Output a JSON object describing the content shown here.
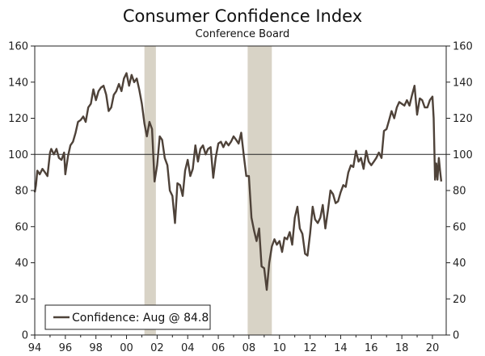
{
  "chart_data": {
    "type": "line",
    "title": "Consumer Confidence Index",
    "subtitle": "Conference Board",
    "xlabel": "",
    "ylabel": "",
    "xlim": [
      1994.0,
      2020.9
    ],
    "ylim": [
      0,
      160
    ],
    "y_ticks": [
      0,
      20,
      40,
      60,
      80,
      100,
      120,
      140,
      160
    ],
    "y_tick_labels": [
      "0",
      "20",
      "40",
      "60",
      "80",
      "100",
      "120",
      "140",
      "160"
    ],
    "x_ticks": [
      1994,
      1996,
      1998,
      2000,
      2002,
      2004,
      2006,
      2008,
      2010,
      2012,
      2014,
      2016,
      2018,
      2020
    ],
    "x_tick_labels": [
      "94",
      "96",
      "98",
      "00",
      "02",
      "04",
      "06",
      "08",
      "10",
      "12",
      "14",
      "16",
      "18",
      "20"
    ],
    "reference_line": 100,
    "grid": false,
    "recessions": [
      [
        2001.17,
        2001.92
      ],
      [
        2007.92,
        2009.5
      ]
    ],
    "colors": {
      "line": "#4e4239",
      "recession": "#d8d3c6",
      "axis": "#222222"
    },
    "legend": {
      "placement": "bottom-left",
      "label": "Confidence: Aug @ 84.8"
    },
    "series": [
      {
        "name": "Confidence: Aug @ 84.8",
        "x": [
          1994.0,
          1994.08,
          1994.17,
          1994.33,
          1994.5,
          1994.67,
          1994.83,
          1995.0,
          1995.08,
          1995.25,
          1995.42,
          1995.58,
          1995.75,
          1995.92,
          1996.0,
          1996.17,
          1996.33,
          1996.5,
          1996.67,
          1996.83,
          1997.0,
          1997.17,
          1997.33,
          1997.5,
          1997.67,
          1997.83,
          1998.0,
          1998.17,
          1998.33,
          1998.5,
          1998.67,
          1998.83,
          1999.0,
          1999.17,
          1999.33,
          1999.5,
          1999.67,
          1999.83,
          2000.0,
          2000.17,
          2000.33,
          2000.5,
          2000.67,
          2000.83,
          2001.0,
          2001.17,
          2001.33,
          2001.5,
          2001.67,
          2001.83,
          2002.0,
          2002.17,
          2002.33,
          2002.5,
          2002.67,
          2002.83,
          2003.0,
          2003.17,
          2003.33,
          2003.5,
          2003.67,
          2003.83,
          2004.0,
          2004.17,
          2004.33,
          2004.5,
          2004.67,
          2004.83,
          2005.0,
          2005.17,
          2005.33,
          2005.5,
          2005.67,
          2005.83,
          2006.0,
          2006.17,
          2006.33,
          2006.5,
          2006.67,
          2006.83,
          2007.0,
          2007.17,
          2007.33,
          2007.5,
          2007.67,
          2007.83,
          2008.0,
          2008.17,
          2008.33,
          2008.5,
          2008.67,
          2008.83,
          2009.0,
          2009.17,
          2009.33,
          2009.5,
          2009.67,
          2009.83,
          2010.0,
          2010.17,
          2010.33,
          2010.5,
          2010.67,
          2010.83,
          2011.0,
          2011.17,
          2011.33,
          2011.5,
          2011.67,
          2011.83,
          2012.0,
          2012.17,
          2012.33,
          2012.5,
          2012.67,
          2012.83,
          2013.0,
          2013.17,
          2013.33,
          2013.5,
          2013.67,
          2013.83,
          2014.0,
          2014.17,
          2014.33,
          2014.5,
          2014.67,
          2014.83,
          2015.0,
          2015.17,
          2015.33,
          2015.5,
          2015.67,
          2015.83,
          2016.0,
          2016.17,
          2016.33,
          2016.5,
          2016.67,
          2016.83,
          2017.0,
          2017.17,
          2017.33,
          2017.5,
          2017.67,
          2017.83,
          2018.0,
          2018.17,
          2018.33,
          2018.5,
          2018.67,
          2018.83,
          2019.0,
          2019.17,
          2019.33,
          2019.5,
          2019.67,
          2019.83,
          2020.0,
          2020.08,
          2020.17,
          2020.25,
          2020.33,
          2020.42,
          2020.5,
          2020.58
        ],
        "values": [
          79,
          83,
          91,
          89,
          92,
          90,
          88,
          101,
          103,
          100,
          103,
          98,
          97,
          101,
          89,
          99,
          105,
          107,
          112,
          118,
          119,
          121,
          118,
          126,
          128,
          136,
          130,
          135,
          137,
          138,
          133,
          124,
          126,
          133,
          135,
          139,
          135,
          142,
          145,
          138,
          144,
          140,
          142,
          136,
          128,
          117,
          110,
          118,
          114,
          85,
          94,
          110,
          108,
          98,
          94,
          80,
          77,
          62,
          84,
          83,
          77,
          91,
          97,
          88,
          92,
          105,
          96,
          103,
          105,
          100,
          103,
          104,
          87,
          98,
          106,
          107,
          104,
          107,
          105,
          107,
          110,
          108,
          106,
          112,
          99,
          88,
          88,
          65,
          58,
          52,
          59,
          38,
          37,
          25,
          40,
          49,
          53,
          50,
          52,
          46,
          54,
          53,
          57,
          50,
          65,
          71,
          59,
          56,
          45,
          44,
          56,
          71,
          64,
          62,
          65,
          72,
          59,
          69,
          80,
          78,
          73,
          74,
          79,
          83,
          82,
          90,
          94,
          93,
          102,
          96,
          98,
          92,
          102,
          96,
          94,
          96,
          98,
          101,
          98,
          113,
          114,
          119,
          124,
          120,
          126,
          129,
          128,
          127,
          130,
          127,
          133,
          138,
          122,
          131,
          130,
          126,
          126,
          130,
          132,
          120,
          86,
          95,
          86,
          98,
          91,
          85
        ]
      }
    ]
  }
}
